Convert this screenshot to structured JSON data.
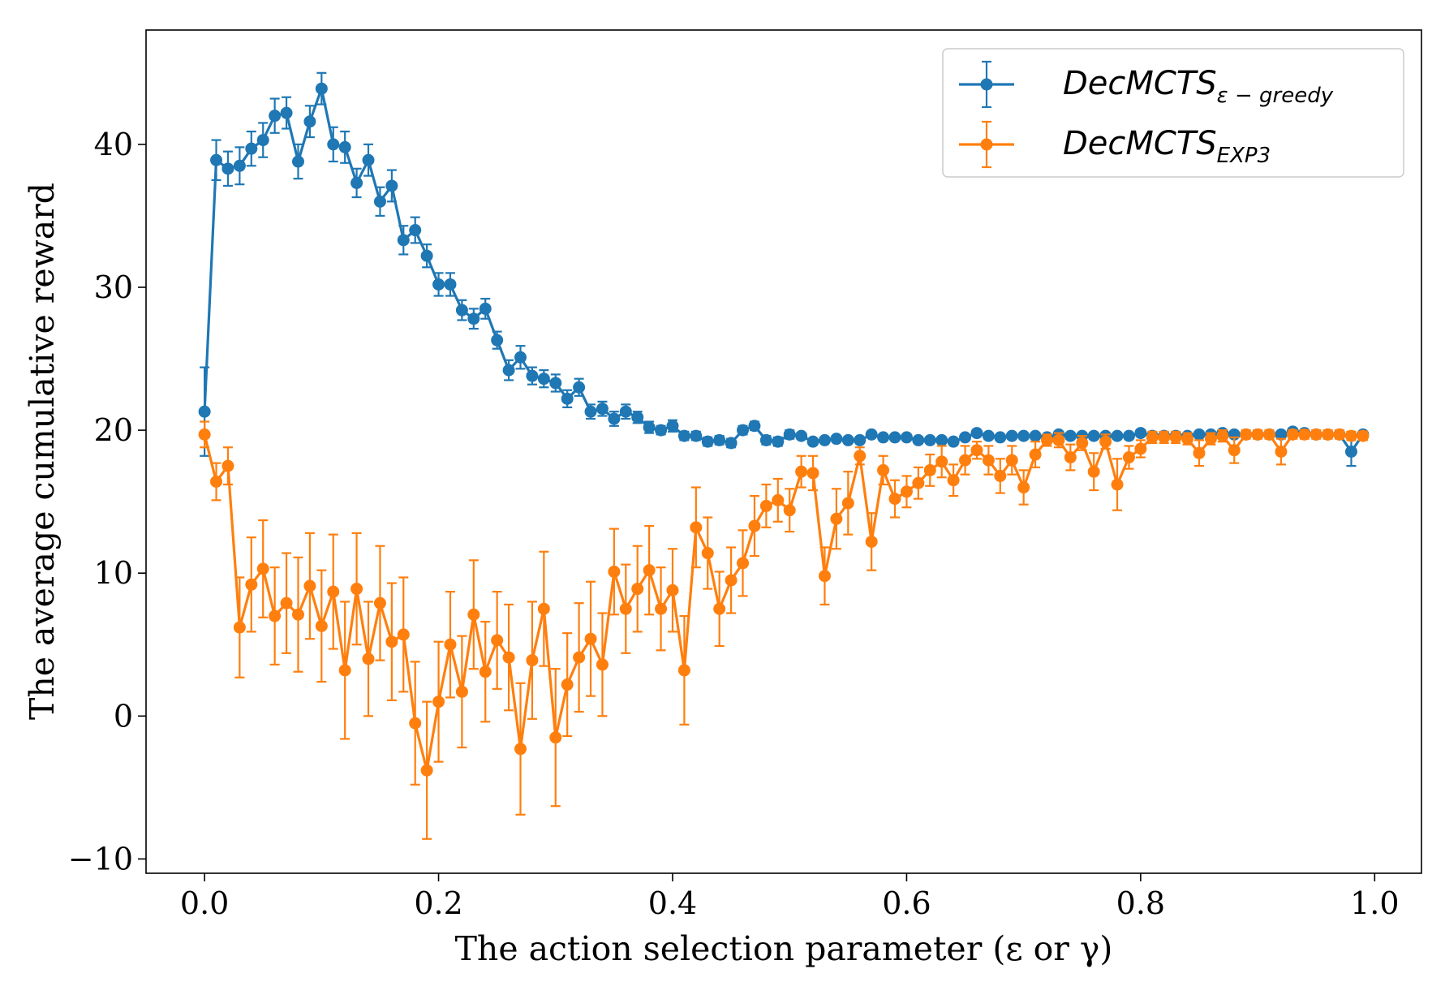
{
  "chart_data": {
    "type": "line",
    "title": "",
    "xlabel": "The action selection parameter (ε or γ)",
    "ylabel": "The average cumulative reward",
    "xlim": [
      -0.05,
      1.04
    ],
    "ylim": [
      -11,
      48
    ],
    "xticks": [
      0.0,
      0.2,
      0.4,
      0.6,
      0.8,
      1.0
    ],
    "xtick_labels": [
      "0.0",
      "0.2",
      "0.4",
      "0.6",
      "0.8",
      "1.0"
    ],
    "yticks": [
      -10,
      0,
      10,
      20,
      30,
      40
    ],
    "ytick_labels": [
      "−10",
      "0",
      "10",
      "20",
      "30",
      "40"
    ],
    "legend_position": "top-right",
    "x": [
      0.0,
      0.01,
      0.02,
      0.03,
      0.04,
      0.05,
      0.06,
      0.07,
      0.08,
      0.09,
      0.1,
      0.11,
      0.12,
      0.13,
      0.14,
      0.15,
      0.16,
      0.17,
      0.18,
      0.19,
      0.2,
      0.21,
      0.22,
      0.23,
      0.24,
      0.25,
      0.26,
      0.27,
      0.28,
      0.29,
      0.3,
      0.31,
      0.32,
      0.33,
      0.34,
      0.35,
      0.36,
      0.37,
      0.38,
      0.39,
      0.4,
      0.41,
      0.42,
      0.43,
      0.44,
      0.45,
      0.46,
      0.47,
      0.48,
      0.49,
      0.5,
      0.51,
      0.52,
      0.53,
      0.54,
      0.55,
      0.56,
      0.57,
      0.58,
      0.59,
      0.6,
      0.61,
      0.62,
      0.63,
      0.64,
      0.65,
      0.66,
      0.67,
      0.68,
      0.69,
      0.7,
      0.71,
      0.72,
      0.73,
      0.74,
      0.75,
      0.76,
      0.77,
      0.78,
      0.79,
      0.8,
      0.81,
      0.82,
      0.83,
      0.84,
      0.85,
      0.86,
      0.87,
      0.88,
      0.89,
      0.9,
      0.91,
      0.92,
      0.93,
      0.94,
      0.95,
      0.96,
      0.97,
      0.98,
      0.99
    ],
    "series": [
      {
        "name": "DecMCTS",
        "subscript": "ε − greedy",
        "color": "#1f77b4",
        "values": [
          21.3,
          38.9,
          38.3,
          38.5,
          39.7,
          40.3,
          42.0,
          42.2,
          38.8,
          41.6,
          43.9,
          40.0,
          39.8,
          37.3,
          38.9,
          36.0,
          37.1,
          33.3,
          34.0,
          32.2,
          30.2,
          30.2,
          28.4,
          27.8,
          28.5,
          26.3,
          24.2,
          25.1,
          23.8,
          23.6,
          23.3,
          22.2,
          23.0,
          21.3,
          21.5,
          20.8,
          21.3,
          20.9,
          20.2,
          20.0,
          20.3,
          19.6,
          19.6,
          19.2,
          19.3,
          19.1,
          20.0,
          20.3,
          19.3,
          19.2,
          19.7,
          19.6,
          19.2,
          19.3,
          19.4,
          19.3,
          19.3,
          19.7,
          19.5,
          19.5,
          19.5,
          19.3,
          19.3,
          19.3,
          19.2,
          19.5,
          19.8,
          19.6,
          19.5,
          19.6,
          19.6,
          19.6,
          19.5,
          19.7,
          19.6,
          19.6,
          19.6,
          19.6,
          19.6,
          19.6,
          19.8,
          19.6,
          19.6,
          19.6,
          19.6,
          19.7,
          19.7,
          19.8,
          19.7,
          19.7,
          19.7,
          19.7,
          19.7,
          19.9,
          19.8,
          19.7,
          19.7,
          19.7,
          18.5,
          19.7
        ],
        "errors": [
          3.1,
          1.4,
          1.2,
          1.3,
          1.2,
          1.2,
          1.2,
          1.1,
          1.2,
          1.1,
          1.1,
          1.2,
          1.1,
          1.0,
          1.1,
          1.0,
          1.1,
          1.0,
          0.9,
          0.8,
          0.8,
          0.8,
          0.7,
          0.7,
          0.7,
          0.6,
          0.7,
          0.8,
          0.6,
          0.6,
          0.6,
          0.6,
          0.6,
          0.5,
          0.5,
          0.5,
          0.5,
          0.4,
          0.4,
          0.3,
          0.4,
          0.3,
          0.3,
          0.3,
          0.3,
          0.3,
          0.3,
          0.3,
          0.3,
          0.3,
          0.3,
          0.2,
          0.2,
          0.2,
          0.2,
          0.2,
          0.2,
          0.2,
          0.2,
          0.2,
          0.2,
          0.2,
          0.2,
          0.2,
          0.2,
          0.2,
          0.2,
          0.2,
          0.2,
          0.2,
          0.2,
          0.2,
          0.2,
          0.2,
          0.2,
          0.2,
          0.2,
          0.2,
          0.2,
          0.2,
          0.2,
          0.2,
          0.2,
          0.2,
          0.2,
          0.2,
          0.2,
          0.2,
          0.2,
          0.2,
          0.2,
          0.2,
          0.2,
          0.2,
          0.2,
          0.2,
          0.2,
          0.2,
          1.0,
          0.2
        ]
      },
      {
        "name": "DecMCTS",
        "subscript": "EXP3",
        "color": "#ff7f0e",
        "values": [
          19.7,
          16.4,
          17.5,
          6.2,
          9.2,
          10.3,
          7.0,
          7.9,
          7.1,
          9.1,
          6.3,
          8.7,
          3.2,
          8.9,
          4.0,
          7.9,
          5.2,
          5.7,
          -0.5,
          -3.8,
          1.0,
          5.0,
          1.7,
          7.1,
          3.1,
          5.3,
          4.1,
          -2.3,
          3.9,
          7.5,
          -1.5,
          2.2,
          4.1,
          5.4,
          3.6,
          10.1,
          7.5,
          8.9,
          10.2,
          7.5,
          8.8,
          3.2,
          13.2,
          11.4,
          7.5,
          9.5,
          10.7,
          13.3,
          14.7,
          15.1,
          14.4,
          17.1,
          17.0,
          9.8,
          13.8,
          14.9,
          18.2,
          12.2,
          17.2,
          15.2,
          15.7,
          16.3,
          17.2,
          17.8,
          16.5,
          17.9,
          18.6,
          17.9,
          16.8,
          17.9,
          16.0,
          18.3,
          19.3,
          19.3,
          18.1,
          19.1,
          17.1,
          19.2,
          16.2,
          18.1,
          18.7,
          19.5,
          19.5,
          19.5,
          19.4,
          18.4,
          19.4,
          19.6,
          18.6,
          19.7,
          19.7,
          19.7,
          18.5,
          19.7,
          19.7,
          19.7,
          19.7,
          19.7,
          19.6,
          19.6
        ],
        "errors": [
          0.9,
          1.3,
          1.3,
          3.5,
          3.3,
          3.4,
          3.4,
          3.5,
          4.0,
          3.7,
          3.9,
          4.0,
          4.8,
          3.9,
          4.0,
          4.0,
          4.1,
          4.0,
          4.3,
          4.8,
          4.2,
          3.7,
          3.9,
          3.8,
          3.5,
          3.4,
          3.7,
          4.6,
          4.1,
          4.0,
          4.8,
          3.6,
          3.8,
          4.0,
          3.6,
          3.0,
          3.1,
          3.0,
          3.1,
          2.9,
          2.9,
          3.8,
          2.8,
          2.5,
          2.6,
          2.3,
          2.3,
          2.1,
          1.5,
          1.5,
          1.5,
          1.1,
          1.2,
          2.0,
          2.1,
          2.2,
          0.6,
          2.0,
          1.0,
          1.3,
          1.1,
          1.1,
          1.1,
          1.1,
          1.1,
          1.0,
          0.6,
          1.0,
          1.2,
          1.0,
          1.2,
          0.9,
          0.4,
          0.5,
          0.9,
          0.5,
          1.3,
          0.5,
          1.8,
          0.8,
          0.6,
          0.4,
          0.4,
          0.4,
          0.4,
          0.9,
          0.4,
          0.4,
          0.9,
          0.3,
          0.3,
          0.3,
          0.9,
          0.3,
          0.3,
          0.3,
          0.3,
          0.3,
          0.3,
          0.3
        ]
      }
    ]
  }
}
